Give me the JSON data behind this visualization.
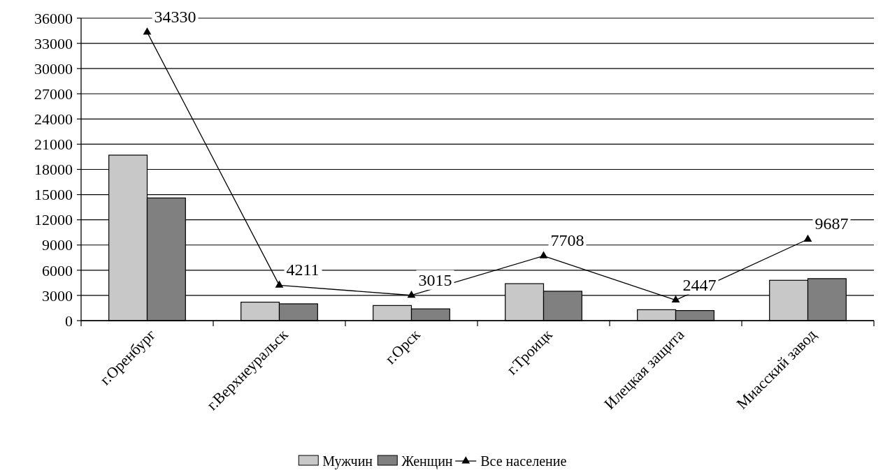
{
  "chart_data": {
    "type": "bar",
    "categories": [
      "г.Оренбург",
      "г.Верхнеуральск",
      "г.Орск",
      "г.Троицк",
      "Илецкая защита",
      "Миасский завод"
    ],
    "series": [
      {
        "name": "Мужчин",
        "color": "#c8c8c8",
        "values": [
          19700,
          2200,
          1800,
          4400,
          1300,
          4800
        ]
      },
      {
        "name": "Женщин",
        "color": "#808080",
        "values": [
          14600,
          2000,
          1400,
          3500,
          1200,
          5000
        ]
      },
      {
        "name": "Все население",
        "type": "line",
        "color": "#000000",
        "marker": "triangle",
        "values": [
          34330,
          4211,
          3015,
          7708,
          2447,
          9687
        ],
        "value_labels": [
          "34330",
          "4211",
          "3015",
          "7708",
          "2447",
          "9687"
        ]
      }
    ],
    "ylim": [
      0,
      36000
    ],
    "yticks": [
      0,
      3000,
      6000,
      9000,
      12000,
      15000,
      18000,
      21000,
      24000,
      27000,
      30000,
      33000,
      36000
    ],
    "grid": "y",
    "legend": "bottom"
  }
}
